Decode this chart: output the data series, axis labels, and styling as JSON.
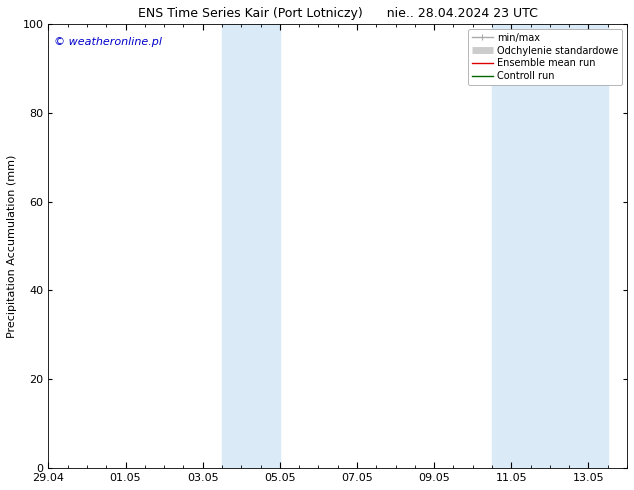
{
  "title_left": "ENS Time Series Kair (Port Lotniczy)",
  "title_right": "nie.. 28.04.2024 23 UTC",
  "ylabel": "Precipitation Accumulation (mm)",
  "watermark": "© weatheronline.pl",
  "watermark_color": "#0000cc",
  "ylim": [
    0,
    100
  ],
  "yticks": [
    0,
    20,
    40,
    60,
    80,
    100
  ],
  "xlim": [
    0,
    15
  ],
  "xtick_labels": [
    "29.04",
    "01.05",
    "03.05",
    "05.05",
    "07.05",
    "09.05",
    "11.05",
    "13.05"
  ],
  "xtick_positions_days": [
    0,
    2,
    4,
    6,
    8,
    10,
    12,
    14
  ],
  "shaded_regions": [
    {
      "start_day": 4.5,
      "end_day": 6.0
    },
    {
      "start_day": 11.5,
      "end_day": 14.5
    }
  ],
  "shaded_color": "#daeaf7",
  "bg_color": "#ffffff",
  "legend_entries": [
    {
      "label": "min/max",
      "color": "#aaaaaa",
      "lw": 1.0
    },
    {
      "label": "Odchylenie standardowe",
      "color": "#cccccc",
      "lw": 5
    },
    {
      "label": "Ensemble mean run",
      "color": "#dd0000",
      "lw": 1.0
    },
    {
      "label": "Controll run",
      "color": "#006600",
      "lw": 1.0
    }
  ],
  "title_fontsize": 9,
  "tick_label_fontsize": 8,
  "ylabel_fontsize": 8,
  "watermark_fontsize": 8,
  "legend_fontsize": 7
}
